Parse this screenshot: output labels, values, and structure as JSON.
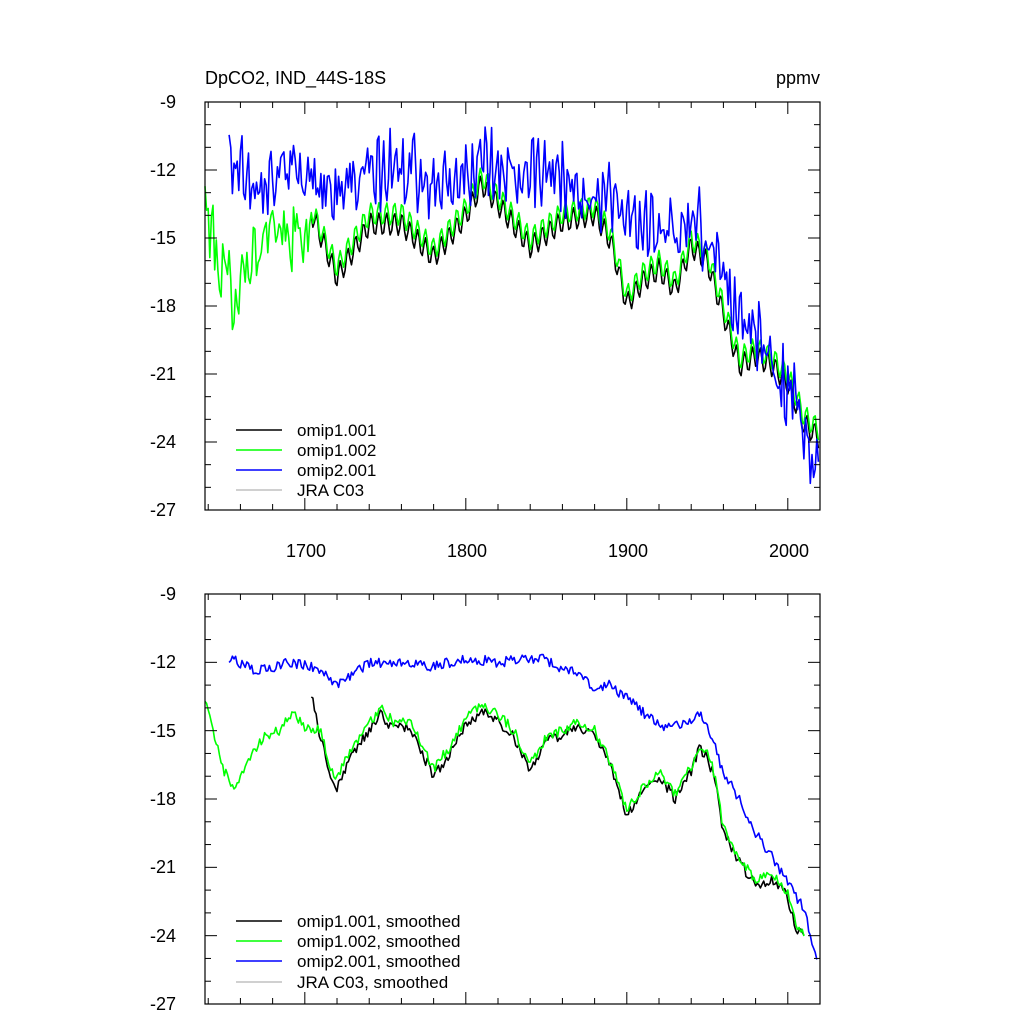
{
  "chart_data": [
    {
      "type": "line",
      "title_left": "DpCO2, IND_44S-18S",
      "title_right": "ppmv",
      "xlim": [
        1638,
        2020
      ],
      "ylim": [
        -27,
        -9
      ],
      "xticks": [
        1700,
        1800,
        1900,
        2000
      ],
      "xtick_labels": [
        "1700",
        "1800",
        "1900",
        "2000"
      ],
      "yticks": [
        -9,
        -12,
        -15,
        -18,
        -21,
        -24,
        -27
      ],
      "ytick_labels": [
        "-9",
        "-12",
        "-15",
        "-18",
        "-21",
        "-24",
        "-27"
      ],
      "legend_position": "bottom-left",
      "series": [
        {
          "name": "omip1.001",
          "color": "#000000",
          "x_start": 1704,
          "x_end": 2019,
          "mode": "annual",
          "anchors": [
            [
              1704,
              -14.7
            ],
            [
              1720,
              -17.6
            ],
            [
              1740,
              -15.3
            ],
            [
              1760,
              -15.3
            ],
            [
              1780,
              -16.8
            ],
            [
              1800,
              -15.0
            ],
            [
              1810,
              -13.6
            ],
            [
              1820,
              -14.5
            ],
            [
              1840,
              -16.4
            ],
            [
              1860,
              -15.3
            ],
            [
              1880,
              -15.0
            ],
            [
              1890,
              -16.2
            ],
            [
              1900,
              -19.0
            ],
            [
              1910,
              -18.0
            ],
            [
              1920,
              -17.5
            ],
            [
              1930,
              -18.4
            ],
            [
              1940,
              -16.5
            ],
            [
              1950,
              -17.2
            ],
            [
              1960,
              -19.5
            ],
            [
              1970,
              -21.8
            ],
            [
              1980,
              -21.4
            ],
            [
              1990,
              -21.8
            ],
            [
              2000,
              -22.6
            ],
            [
              2010,
              -24.4
            ],
            [
              2019,
              -25.0
            ]
          ]
        },
        {
          "name": "omip1.002",
          "color": "#00ff00",
          "x_start": 1638,
          "x_end": 2019,
          "mode": "annual",
          "anchors": [
            [
              1638,
              -13.5
            ],
            [
              1648,
              -16.5
            ],
            [
              1656,
              -17.4
            ],
            [
              1666,
              -15.8
            ],
            [
              1680,
              -14.9
            ],
            [
              1690,
              -14.8
            ],
            [
              1700,
              -14.9
            ],
            [
              1704,
              -14.7
            ],
            [
              1720,
              -17.3
            ],
            [
              1740,
              -15.0
            ],
            [
              1760,
              -15.0
            ],
            [
              1780,
              -16.6
            ],
            [
              1800,
              -14.8
            ],
            [
              1810,
              -13.4
            ],
            [
              1820,
              -14.3
            ],
            [
              1840,
              -16.2
            ],
            [
              1860,
              -15.1
            ],
            [
              1880,
              -14.8
            ],
            [
              1890,
              -16.0
            ],
            [
              1900,
              -18.8
            ],
            [
              1910,
              -17.8
            ],
            [
              1920,
              -17.3
            ],
            [
              1930,
              -18.2
            ],
            [
              1940,
              -16.3
            ],
            [
              1950,
              -17.0
            ],
            [
              1960,
              -19.3
            ],
            [
              1970,
              -21.6
            ],
            [
              1980,
              -21.2
            ],
            [
              1990,
              -21.6
            ],
            [
              2000,
              -22.4
            ],
            [
              2010,
              -24.2
            ],
            [
              2019,
              -24.8
            ]
          ]
        },
        {
          "name": "omip2.001",
          "color": "#0000ff",
          "x_start": 1653,
          "x_end": 2019,
          "mode": "annual",
          "anchors": [
            [
              1653,
              -11.5
            ],
            [
              1670,
              -12.3
            ],
            [
              1690,
              -12.2
            ],
            [
              1710,
              -12.4
            ],
            [
              1720,
              -13.0
            ],
            [
              1740,
              -12.2
            ],
            [
              1760,
              -12.0
            ],
            [
              1780,
              -12.4
            ],
            [
              1800,
              -12.0
            ],
            [
              1820,
              -12.0
            ],
            [
              1840,
              -12.3
            ],
            [
              1860,
              -12.5
            ],
            [
              1880,
              -13.2
            ],
            [
              1890,
              -13.0
            ],
            [
              1900,
              -13.7
            ],
            [
              1910,
              -14.3
            ],
            [
              1920,
              -14.6
            ],
            [
              1930,
              -14.8
            ],
            [
              1940,
              -14.4
            ],
            [
              1950,
              -14.8
            ],
            [
              1960,
              -16.8
            ],
            [
              1970,
              -18.0
            ],
            [
              1980,
              -19.5
            ],
            [
              1990,
              -20.5
            ],
            [
              2000,
              -21.8
            ],
            [
              2010,
              -23.0
            ],
            [
              2015,
              -24.5
            ],
            [
              2019,
              -25.0
            ]
          ]
        },
        {
          "name": "JRA C03",
          "color": "#c0c0c0",
          "x_start": null,
          "x_end": null,
          "mode": "none",
          "anchors": []
        }
      ]
    },
    {
      "type": "line",
      "xlim": [
        1638,
        2020
      ],
      "ylim": [
        -27,
        -9
      ],
      "yticks": [
        -9,
        -12,
        -15,
        -18,
        -21,
        -24,
        -27
      ],
      "ytick_labels": [
        "-9",
        "-12",
        "-15",
        "-18",
        "-21",
        "-24",
        "-27"
      ],
      "legend_position": "bottom-left",
      "series": [
        {
          "name": "omip1.001, smoothed",
          "color": "#000000",
          "x_start": 1704,
          "x_end": 2010,
          "mode": "smoothed",
          "anchors": [
            [
              1704,
              -13.3
            ],
            [
              1710,
              -15.4
            ],
            [
              1716,
              -17.0
            ],
            [
              1719,
              -17.6
            ],
            [
              1730,
              -16.0
            ],
            [
              1740,
              -15.0
            ],
            [
              1747,
              -14.3
            ],
            [
              1755,
              -14.9
            ],
            [
              1765,
              -14.8
            ],
            [
              1775,
              -16.3
            ],
            [
              1780,
              -17.0
            ],
            [
              1790,
              -16.0
            ],
            [
              1800,
              -14.8
            ],
            [
              1810,
              -14.1
            ],
            [
              1820,
              -14.6
            ],
            [
              1830,
              -15.3
            ],
            [
              1840,
              -16.7
            ],
            [
              1850,
              -15.5
            ],
            [
              1860,
              -15.2
            ],
            [
              1870,
              -14.8
            ],
            [
              1880,
              -15.2
            ],
            [
              1890,
              -16.6
            ],
            [
              1900,
              -18.7
            ],
            [
              1910,
              -17.7
            ],
            [
              1920,
              -17.0
            ],
            [
              1930,
              -18.0
            ],
            [
              1940,
              -16.8
            ],
            [
              1945,
              -15.8
            ],
            [
              1950,
              -16.2
            ],
            [
              1955,
              -17.2
            ],
            [
              1960,
              -19.5
            ],
            [
              1970,
              -20.8
            ],
            [
              1980,
              -21.8
            ],
            [
              1990,
              -21.5
            ],
            [
              1995,
              -21.8
            ],
            [
              2000,
              -22.3
            ],
            [
              2005,
              -23.8
            ],
            [
              2010,
              -24.0
            ]
          ]
        },
        {
          "name": "omip1.002, smoothed",
          "color": "#00ff00",
          "x_start": 1638,
          "x_end": 2010,
          "mode": "smoothed",
          "anchors": [
            [
              1638,
              -13.5
            ],
            [
              1645,
              -15.6
            ],
            [
              1650,
              -16.8
            ],
            [
              1656,
              -17.5
            ],
            [
              1665,
              -16.2
            ],
            [
              1675,
              -15.2
            ],
            [
              1685,
              -15.0
            ],
            [
              1692,
              -14.2
            ],
            [
              1700,
              -14.9
            ],
            [
              1710,
              -15.0
            ],
            [
              1716,
              -16.6
            ],
            [
              1719,
              -17.2
            ],
            [
              1730,
              -15.7
            ],
            [
              1740,
              -14.7
            ],
            [
              1747,
              -14.0
            ],
            [
              1755,
              -14.6
            ],
            [
              1765,
              -14.5
            ],
            [
              1775,
              -16.0
            ],
            [
              1780,
              -16.7
            ],
            [
              1790,
              -15.7
            ],
            [
              1800,
              -14.5
            ],
            [
              1810,
              -13.8
            ],
            [
              1820,
              -14.3
            ],
            [
              1830,
              -15.0
            ],
            [
              1840,
              -16.5
            ],
            [
              1850,
              -15.3
            ],
            [
              1860,
              -15.0
            ],
            [
              1870,
              -14.6
            ],
            [
              1880,
              -15.0
            ],
            [
              1890,
              -16.4
            ],
            [
              1900,
              -18.5
            ],
            [
              1910,
              -17.5
            ],
            [
              1920,
              -16.8
            ],
            [
              1930,
              -17.8
            ],
            [
              1940,
              -16.6
            ],
            [
              1945,
              -15.6
            ],
            [
              1950,
              -16.0
            ],
            [
              1955,
              -17.0
            ],
            [
              1960,
              -19.3
            ],
            [
              1970,
              -20.6
            ],
            [
              1980,
              -21.6
            ],
            [
              1990,
              -21.3
            ],
            [
              1995,
              -21.6
            ],
            [
              2000,
              -22.1
            ],
            [
              2005,
              -23.6
            ],
            [
              2010,
              -23.8
            ]
          ]
        },
        {
          "name": "omip2.001, smoothed",
          "color": "#0000ff",
          "x_start": 1653,
          "x_end": 2018,
          "mode": "smoothed",
          "anchors": [
            [
              1653,
              -11.8
            ],
            [
              1670,
              -12.4
            ],
            [
              1690,
              -12.0
            ],
            [
              1710,
              -12.3
            ],
            [
              1720,
              -13.0
            ],
            [
              1740,
              -12.0
            ],
            [
              1760,
              -12.0
            ],
            [
              1780,
              -12.2
            ],
            [
              1800,
              -11.8
            ],
            [
              1820,
              -12.0
            ],
            [
              1840,
              -11.8
            ],
            [
              1850,
              -11.9
            ],
            [
              1860,
              -12.3
            ],
            [
              1870,
              -12.4
            ],
            [
              1880,
              -13.2
            ],
            [
              1890,
              -13.0
            ],
            [
              1900,
              -13.6
            ],
            [
              1910,
              -14.2
            ],
            [
              1920,
              -14.8
            ],
            [
              1930,
              -14.8
            ],
            [
              1940,
              -14.5
            ],
            [
              1945,
              -14.2
            ],
            [
              1950,
              -14.8
            ],
            [
              1955,
              -15.8
            ],
            [
              1960,
              -16.8
            ],
            [
              1970,
              -18.0
            ],
            [
              1980,
              -19.5
            ],
            [
              1990,
              -20.5
            ],
            [
              2000,
              -21.7
            ],
            [
              2010,
              -22.8
            ],
            [
              2018,
              -25.2
            ]
          ]
        },
        {
          "name": "JRA C03, smoothed",
          "color": "#c0c0c0",
          "x_start": null,
          "x_end": null,
          "mode": "none",
          "anchors": []
        }
      ]
    }
  ]
}
